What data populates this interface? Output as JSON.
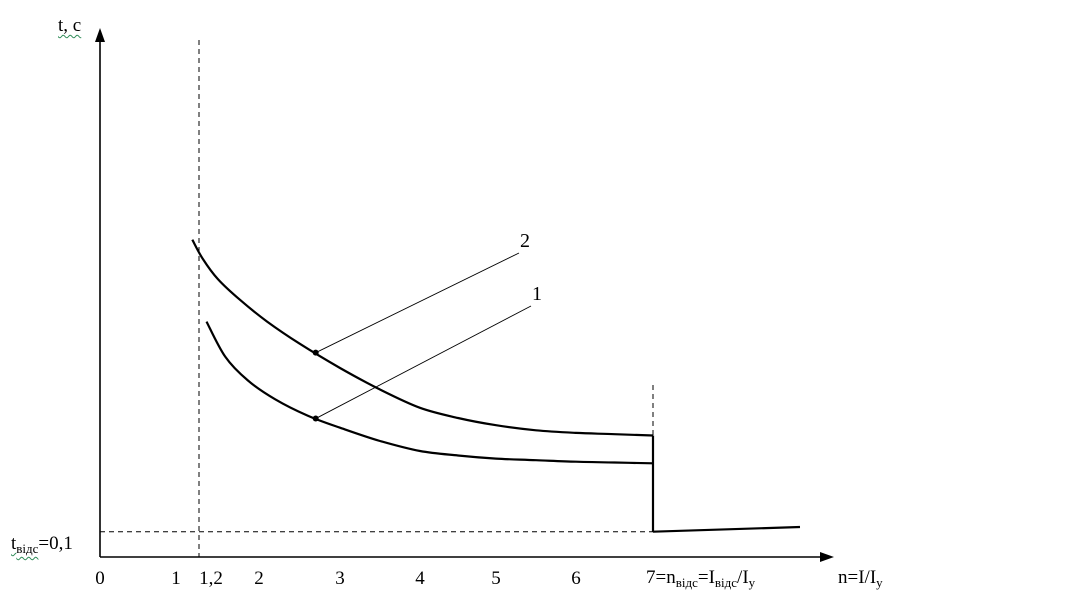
{
  "chart_data": {
    "type": "line",
    "ylabel": "t, c",
    "xlabel": {
      "main": "n=I/I",
      "sub": "y"
    },
    "x_ticks": [
      "0",
      "1",
      "1,2",
      "2",
      "3",
      "4",
      "5",
      "6"
    ],
    "x_tick_values": [
      0,
      1,
      1.2,
      2,
      3,
      4,
      5,
      6
    ],
    "x_tick7": {
      "value": 7,
      "n": "7",
      "eq1": "=n",
      "sub1": "відс",
      "eq2": "=I",
      "sub2": "відс",
      "eq3": "/I",
      "sub3": "y"
    },
    "y_label_tvids": {
      "main": "t",
      "sub": "відс",
      "rest": "=0,1"
    },
    "t_vids_value": 0.1,
    "threshold_x": 1.2,
    "cutoff_x": 7,
    "series": [
      {
        "name": "1",
        "x": [
          1.3,
          1.55,
          1.85,
          2.2,
          2.6,
          3.0,
          3.5,
          4.0,
          4.5,
          5.0,
          5.5,
          6.0,
          6.5,
          7.0
        ],
        "y": [
          2.05,
          1.45,
          1.15,
          0.95,
          0.8,
          0.7,
          0.6,
          0.53,
          0.5,
          0.48,
          0.47,
          0.46,
          0.455,
          0.45
        ]
      },
      {
        "name": "2",
        "x": [
          1.13,
          1.25,
          1.45,
          1.75,
          2.1,
          2.5,
          3.0,
          3.5,
          4.0,
          4.5,
          5.0,
          5.5,
          6.0,
          6.5,
          7.0
        ],
        "y": [
          5.2,
          4.05,
          3.2,
          2.55,
          2.05,
          1.65,
          1.3,
          1.05,
          0.87,
          0.78,
          0.72,
          0.68,
          0.66,
          0.65,
          0.64
        ]
      }
    ],
    "post_cutoff": {
      "x": [
        7,
        9.0
      ],
      "y": [
        0.1,
        0.12
      ]
    },
    "annotations": [
      {
        "text": "2",
        "series": "2",
        "at_x": 2.7
      },
      {
        "text": "1",
        "series": "1",
        "at_x": 2.7
      }
    ]
  }
}
